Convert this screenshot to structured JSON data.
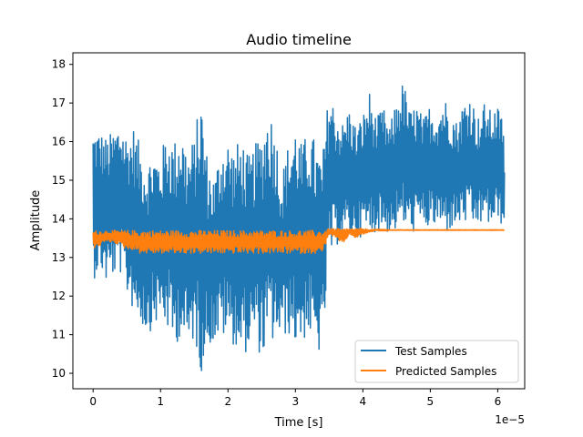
{
  "chart_data": {
    "type": "line",
    "title": "Audio timeline",
    "xlabel": "Time [s]",
    "ylabel": "Amplitude",
    "x_multiplier_label": "1e−5",
    "xlim": [
      -3e-06,
      6.4e-05
    ],
    "ylim": [
      9.6,
      18.3
    ],
    "xticks": [
      0,
      1e-05,
      2e-05,
      3e-05,
      4e-05,
      5e-05,
      6e-05
    ],
    "xtick_labels": [
      "0",
      "1",
      "2",
      "3",
      "4",
      "5",
      "6"
    ],
    "yticks": [
      10,
      11,
      12,
      13,
      14,
      15,
      16,
      17,
      18
    ],
    "ytick_labels": [
      "10",
      "11",
      "12",
      "13",
      "14",
      "15",
      "16",
      "17",
      "18"
    ],
    "grid": false,
    "legend_position": "lower right",
    "series": [
      {
        "name": "Test Samples",
        "color": "#1f77b4",
        "x": [
          0,
          1e-06,
          2e-06,
          3e-06,
          4e-06,
          5e-06,
          6e-06,
          7e-06,
          8e-06,
          9e-06,
          1e-05,
          1.1e-05,
          1.2e-05,
          1.3e-05,
          1.4e-05,
          1.5e-05,
          1.6e-05,
          1.7e-05,
          1.8e-05,
          1.9e-05,
          2e-05,
          2.1e-05,
          2.2e-05,
          2.3e-05,
          2.4e-05,
          2.5e-05,
          2.6e-05,
          2.7e-05,
          2.8e-05,
          2.9e-05,
          3e-05,
          3.1e-05,
          3.2e-05,
          3.3e-05,
          3.4e-05,
          3.5e-05,
          3.6e-05,
          3.7e-05,
          3.8e-05,
          3.9e-05,
          4e-05,
          4.1e-05,
          4.2e-05,
          4.3e-05,
          4.4e-05,
          4.5e-05,
          4.6e-05,
          4.7e-05,
          4.8e-05,
          4.9e-05,
          5e-05,
          5.1e-05,
          5.2e-05,
          5.3e-05,
          5.4e-05,
          5.5e-05,
          5.6e-05,
          5.7e-05,
          5.8e-05,
          5.9e-05,
          6e-05,
          6.1e-05
        ],
        "y_min": [
          12.4,
          12.7,
          12.3,
          12.5,
          12.6,
          12.0,
          11.6,
          11.3,
          11.0,
          11.2,
          11.4,
          11.1,
          10.6,
          11.0,
          10.4,
          10.9,
          10.0,
          10.7,
          10.8,
          10.9,
          10.9,
          10.7,
          10.4,
          10.6,
          10.9,
          10.3,
          10.7,
          10.8,
          10.9,
          11.0,
          10.7,
          10.8,
          11.0,
          10.4,
          10.6,
          12.9,
          13.3,
          13.4,
          13.6,
          13.4,
          13.6,
          13.5,
          13.7,
          13.7,
          13.6,
          13.7,
          13.8,
          13.6,
          13.7,
          13.8,
          13.7,
          13.8,
          13.6,
          13.7,
          13.8,
          13.9,
          13.7,
          13.8,
          13.9,
          13.8,
          13.9,
          13.8
        ],
        "y_max": [
          16.4,
          16.3,
          16.1,
          16.3,
          16.6,
          16.2,
          16.4,
          15.9,
          15.5,
          15.8,
          15.6,
          16.4,
          16.0,
          16.5,
          15.8,
          16.1,
          17.3,
          15.5,
          15.1,
          16.0,
          16.1,
          15.8,
          16.2,
          15.6,
          15.9,
          16.3,
          17.0,
          16.4,
          15.2,
          16.0,
          16.5,
          15.9,
          16.4,
          16.0,
          15.6,
          17.4,
          16.8,
          16.5,
          16.9,
          16.4,
          16.7,
          17.3,
          16.6,
          16.9,
          16.4,
          17.1,
          17.6,
          16.8,
          17.0,
          16.6,
          17.0,
          16.8,
          17.2,
          16.9,
          16.5,
          17.1,
          17.3,
          16.6,
          17.0,
          16.8,
          16.9,
          16.6
        ],
        "y_end": 15.2
      },
      {
        "name": "Predicted Samples",
        "color": "#ff7f0e",
        "x": [
          0,
          1e-06,
          2e-06,
          3e-06,
          4e-06,
          5e-06,
          6e-06,
          7e-06,
          8e-06,
          9e-06,
          1e-05,
          1.1e-05,
          1.2e-05,
          1.3e-05,
          1.4e-05,
          1.5e-05,
          1.6e-05,
          1.7e-05,
          1.8e-05,
          1.9e-05,
          2e-05,
          2.1e-05,
          2.2e-05,
          2.3e-05,
          2.4e-05,
          2.5e-05,
          2.6e-05,
          2.7e-05,
          2.8e-05,
          2.9e-05,
          3e-05,
          3.1e-05,
          3.2e-05,
          3.3e-05,
          3.4e-05,
          3.5e-05,
          3.6e-05,
          3.7e-05,
          3.8e-05,
          3.9e-05,
          4e-05,
          4.1e-05,
          4.2e-05,
          4.3e-05,
          4.4e-05,
          4.5e-05,
          4.6e-05,
          4.7e-05,
          4.8e-05,
          4.9e-05,
          5e-05,
          5.1e-05,
          5.2e-05,
          5.3e-05,
          5.4e-05,
          5.5e-05,
          5.6e-05,
          5.7e-05,
          5.8e-05,
          5.9e-05,
          6e-05,
          6.1e-05
        ],
        "y_min": [
          13.2,
          13.3,
          13.4,
          13.4,
          13.3,
          13.2,
          13.2,
          13.1,
          13.1,
          13.1,
          13.1,
          13.1,
          13.1,
          13.1,
          13.1,
          13.1,
          13.1,
          13.1,
          13.1,
          13.1,
          13.1,
          13.1,
          13.1,
          13.1,
          13.1,
          13.1,
          13.1,
          13.1,
          13.1,
          13.1,
          13.1,
          13.1,
          13.1,
          13.1,
          13.1,
          13.6,
          13.5,
          13.3,
          13.6,
          13.5,
          13.6,
          13.65,
          13.7,
          13.68,
          13.7,
          13.7,
          13.7,
          13.7,
          13.7,
          13.7,
          13.7,
          13.7,
          13.7,
          13.7,
          13.7,
          13.7,
          13.7,
          13.7,
          13.7,
          13.7,
          13.7,
          13.7
        ],
        "y_max": [
          13.7,
          13.7,
          13.7,
          13.7,
          13.7,
          13.7,
          13.7,
          13.7,
          13.7,
          13.7,
          13.7,
          13.7,
          13.7,
          13.7,
          13.7,
          13.7,
          13.7,
          13.7,
          13.7,
          13.7,
          13.7,
          13.7,
          13.7,
          13.7,
          13.7,
          13.7,
          13.7,
          13.7,
          13.7,
          13.7,
          13.7,
          13.7,
          13.7,
          13.7,
          13.7,
          13.75,
          13.75,
          13.75,
          13.75,
          13.75,
          13.75,
          13.73,
          13.73,
          13.73,
          13.72,
          13.72,
          13.72,
          13.72,
          13.72,
          13.72,
          13.72,
          13.72,
          13.72,
          13.72,
          13.72,
          13.72,
          13.72,
          13.72,
          13.72,
          13.72,
          13.72,
          13.72
        ],
        "y_end": 13.7
      }
    ]
  }
}
